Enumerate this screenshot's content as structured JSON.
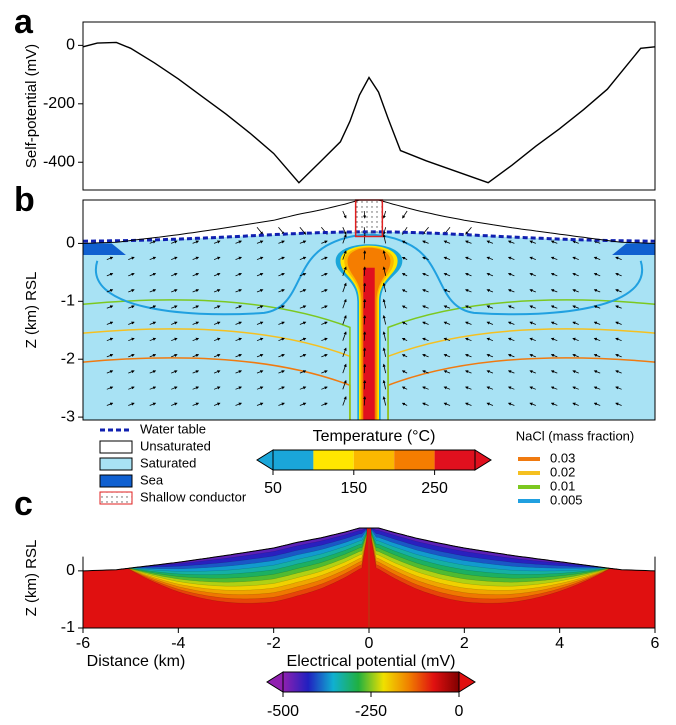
{
  "chart_data": [
    {
      "type": "line",
      "label": "a",
      "ylabel": "Self-potential (mV)",
      "xlim": [
        -6,
        6
      ],
      "ylim": [
        -495,
        80
      ],
      "yticks": [
        0,
        -200,
        -400
      ],
      "series": [
        {
          "color": "#000000",
          "x": [
            -6,
            -5.7,
            -5.3,
            -5,
            -4.5,
            -4,
            -3.5,
            -3,
            -2.5,
            -2,
            -1.47,
            -1,
            -0.6,
            -0.4,
            -0.2,
            0,
            0.2,
            0.4,
            0.66,
            1.2,
            2.5,
            3,
            3.5,
            4,
            4.5,
            5,
            5.4,
            5.7,
            6
          ],
          "values": [
            -5,
            8,
            10,
            -10,
            -60,
            -115,
            -175,
            -235,
            -300,
            -370,
            -470,
            -395,
            -330,
            -260,
            -170,
            -110,
            -160,
            -250,
            -360,
            -395,
            -470,
            -410,
            -345,
            -285,
            -220,
            -150,
            -70,
            -10,
            -5
          ]
        }
      ]
    },
    {
      "type": "section",
      "label": "b",
      "ylabel": "Z (km) RSL",
      "ylim": [
        -3.05,
        0.75
      ],
      "yticks": [
        0,
        -1,
        -2,
        -3
      ],
      "legend": [
        "Water table",
        "Unsaturated",
        "Saturated",
        "Sea",
        "Shallow conductor"
      ],
      "colorbar": {
        "title": "Temperature (°C)",
        "lim": [
          50,
          300
        ],
        "ticks": [
          50,
          150,
          250
        ],
        "colors": [
          "#1aa6d9",
          "#ffe600",
          "#fbb800",
          "#f57d00",
          "#e0101e"
        ]
      },
      "nacl_legend": {
        "title": "NaCl (mass fraction)",
        "values": [
          0.03,
          0.02,
          0.01,
          0.005
        ],
        "colors": [
          "#f07a10",
          "#f5c020",
          "#7cc820",
          "#20a0e0"
        ]
      }
    },
    {
      "type": "contour",
      "label": "c",
      "ylabel": "Z (km) RSL",
      "xlabel": "Distance (km)",
      "xlim": [
        -6,
        6
      ],
      "ylim": [
        -1,
        0.75
      ],
      "xticks": [
        -6,
        -4,
        -2,
        0,
        2,
        4,
        6
      ],
      "yticks": [
        0,
        -1
      ],
      "colorbar": {
        "title": "Electrical potential (mV)",
        "lim": [
          -500,
          0
        ],
        "ticks": [
          -500,
          -250,
          0
        ],
        "colors": [
          "#9020b0",
          "#2020c0",
          "#10b0d0",
          "#20b040",
          "#f0e000",
          "#f08000",
          "#e01010",
          "#800000"
        ]
      }
    }
  ]
}
